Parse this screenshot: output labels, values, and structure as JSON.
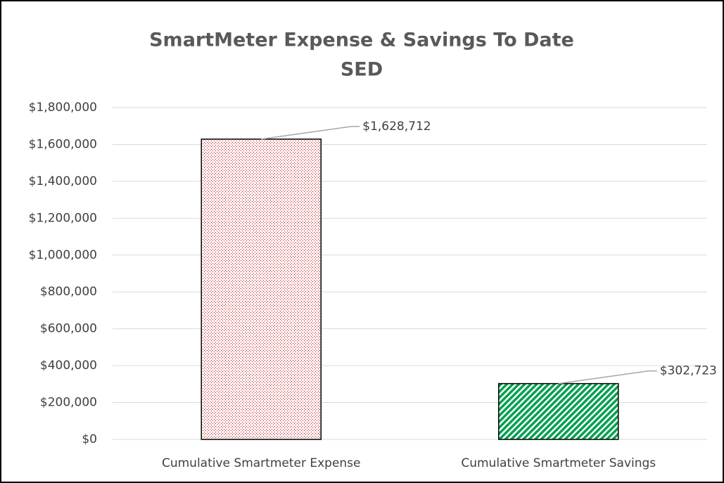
{
  "chart_data": {
    "type": "bar",
    "title": "SmartMeter Expense & Savings To Date",
    "subtitle": "SED",
    "categories": [
      "Cumulative Smartmeter Expense",
      "Cumulative Smartmeter Savings"
    ],
    "values": [
      1628712,
      302723
    ],
    "value_labels": [
      "$1,628,712",
      "$302,723"
    ],
    "colors": [
      "#c00000",
      "#00a050"
    ],
    "patterns": [
      "dots",
      "diagonal-stripes"
    ],
    "ylim": [
      0,
      1800000
    ],
    "yticks": [
      {
        "value": 0,
        "label": "$0"
      },
      {
        "value": 200000,
        "label": "$200,000"
      },
      {
        "value": 400000,
        "label": "$400,000"
      },
      {
        "value": 600000,
        "label": "$600,000"
      },
      {
        "value": 800000,
        "label": "$800,000"
      },
      {
        "value": 1000000,
        "label": "$1,000,000"
      },
      {
        "value": 1200000,
        "label": "$1,200,000"
      },
      {
        "value": 1400000,
        "label": "$1,400,000"
      },
      {
        "value": 1600000,
        "label": "$1,600,000"
      },
      {
        "value": 1800000,
        "label": "$1,800,000"
      }
    ],
    "grid": true
  }
}
